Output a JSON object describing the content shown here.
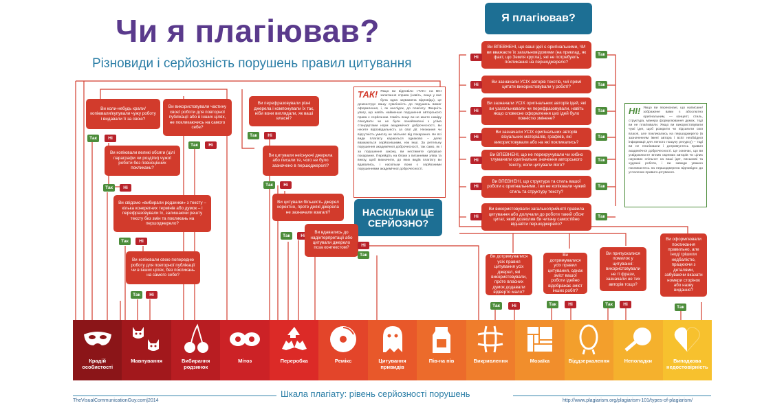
{
  "header": {
    "title": "Чи я плагіював?",
    "subtitle": "Різновиди і серйозність порушень правил цитування",
    "badge_top": "Я плагіював?",
    "badge_mid": "НАСКІЛЬКИ ЦЕ СЕРЙОЗНО?"
  },
  "answers": {
    "yes": "Так",
    "no": "Ні"
  },
  "questions": {
    "q1": "Ви коли-небудь крали/копіювали/купували чужу роботу і видавали її за свою?",
    "q2": "Ви використовували частину своєї роботи для повторної публікації або в інших цілях, не покликаючись на самого себе?",
    "q3": "Ви перефразовували різні джерела і компонували їх так, ніби вони виглядали, як ваші власні?",
    "q4": "Ви копіювали великі обсяги (цілі параграфи чи розділи) чужої роботи без повноцінних покликань?",
    "q5": "Ви цитували неіснуючі джерела або писали те, чого не було зазначено в першоджерелі?",
    "q6": "Ви свідомо «вибирали родзинки» з тексту – кілька конкретних термінів або думок – і перефразовували їх, залишаючи решту тексту без змін та покликань на першоджерело?",
    "q7": "Ви цитували більшість джерел коректно, проте деякі джерела не зазначали взагалі?",
    "q8": "Ви копіювали свою попередню роботу для повторної публікації чи в інших цілях, без покликань на самого себе?",
    "q9": "Ви вдавались до надінтерпретації або цитували джерело поза контекстом?",
    "r1": "Ви ВПЕВНЕНІ, що ваші ідеї є оригінальними, ЧИ ви вважаєте їх загальновідомими (на приклад, як факт, що Земля кругла), які не потребують покликання на першоджерело?",
    "r2": "Ви зазначали УСІХ авторів текстів, чиї прямі цитати використовували у роботі?",
    "r3": "Ви зазначали УСІХ оригінальних авторів ідей, які ви узагальнювали чи перефразовували, навіть якщо словесне оформлення цих ідей було повністю змінене?",
    "r4": "Ви зазначали УСІХ оригінальних авторів візуальних матеріалів, графіків, які використовували або на які покликались?",
    "r5": "Ви ВПЕВНЕНІ, що не перекручували чи хибно тлумачили оригінальне значення авторського тексту, коли цитували його?",
    "r6": "Ви ВПЕВНЕНІ, що структура та стиль вашої роботи є оригінальними, і ви не копіювали чужий стиль та структуру тексту?",
    "r7": "Ви використовували загальноприйняті правила цитування або долучали до роботи такий обсяг цитат, який дозволив би читачу самостійно віднайти першоджерело?",
    "s1": "Ви дотримувалися усіх правил цитування усіх джерел, які використовували, проте власних думок додавали відверто мало?",
    "s2": "Ви дотримувалися усіх правил цитування, однак зміст вашої роботи ідейно відображає зміст інших робіт?",
    "s3": "Ви припускалися помилок у цитуванні: використовували не ті фрази, зазначали не тих авторів тощо?",
    "s4": "Ви оформлювали покликання правильно, але іноді грішили недбалістю, працюючи з деталями, забуваючи вказати номери сторінок або назву видання?"
  },
  "notes": {
    "tak_lead": "ТАК!",
    "tak_text": "Якщо ви відповіли «ТАК» на ВСІ запитання справа (навіть, якщо у вас була одна зауважена відповідь), це демонструє вашу сумлінність до порушень вимог оформлення, і, як наслідок, до плагіату. Зверніть увагу, що навіть найменше порушення авторського права є серйозним. Навіть якщо ви не маєте наміру списувати чи не були ознайомлені з усіма стандартами норм академічної доброчесності, ви несете відповідальність за свої дії. Незнання чи відсутність умислу не звільняє від покарання. Не всі види плагіату караються однаково – деякі вважаються серйознішими, ніж інші. За ретельну порушення академічної доброчесності, так само, як і за порушення закону, ви нестимете суворіше покарання. Перейдіть на блоки з питаннями зліва та внизу, щоб визначити, до яких видів плагіату ви вдавались, і наскільки вони є серйозними порушеннями академічної доброчесності.",
    "ni_lead": "НІ!",
    "ni_text": "Якщо ви переконані, що написане/зображене вами є абсолютно оригінальним, — концепт, стиль, структура, манера формулювання думок, тоді ви не плагіювали. Якщо ви використовували чужі ідеї, щоб розкрити чи підсилити свої власні, але покликались на першоджерело (в зазначенням імені автора і всієї необхідної інформації для легкого пошуку ресурсу) – тоді ви не плагіювали і дотримуєтесь правил академічної доброчесності. Це означає, що ви усвідомлюєте вплив окремих авторів чи цілих наукових спільнот на ваші ідеї, письмові та художні роботи, і ви завжди уважно покликаєтесь на першоджерела відповідно до усталених правил цитування."
  },
  "scale": {
    "title": "Шкала плагіату: рівень серйозності порушень",
    "credit": "TheVisualCommunicationGuy.com|2014",
    "url": "http://www.plagiarism.org/plagiarism-101/types-of-plagiarism/",
    "items": [
      {
        "label": "Крадій особистості",
        "icon": "mask-icon",
        "color": "#8b1518"
      },
      {
        "label": "Мавпування",
        "icon": "cats-icon",
        "color": "#a2181c"
      },
      {
        "label": "Вибирання родзинок",
        "icon": "cherries-icon",
        "color": "#b81d22"
      },
      {
        "label": "Мітоз",
        "icon": "mitosis-icon",
        "color": "#cc2226"
      },
      {
        "label": "Переробка",
        "icon": "recycle-icon",
        "color": "#dc2a27"
      },
      {
        "label": "Ремікс",
        "icon": "disc-icon",
        "color": "#e3452a"
      },
      {
        "label": "Цитування привидів",
        "icon": "ghost-icon",
        "color": "#e8582a"
      },
      {
        "label": "Пів-на пів",
        "icon": "milk-carton-icon",
        "color": "#ec6b2b"
      },
      {
        "label": "Викривлення",
        "icon": "hashtag-icon",
        "color": "#ef7d2c"
      },
      {
        "label": "Мозаїка",
        "icon": "mosaic-icon",
        "color": "#f18e2c"
      },
      {
        "label": "Віддзеркалення",
        "icon": "mirror-icon",
        "color": "#f39f2c"
      },
      {
        "label": "Неполадки",
        "icon": "magnifier-icon",
        "color": "#f5b12d"
      },
      {
        "label": "Випадкова недостовірність",
        "icon": "half-heart-icon",
        "color": "#f7c12e"
      }
    ]
  }
}
